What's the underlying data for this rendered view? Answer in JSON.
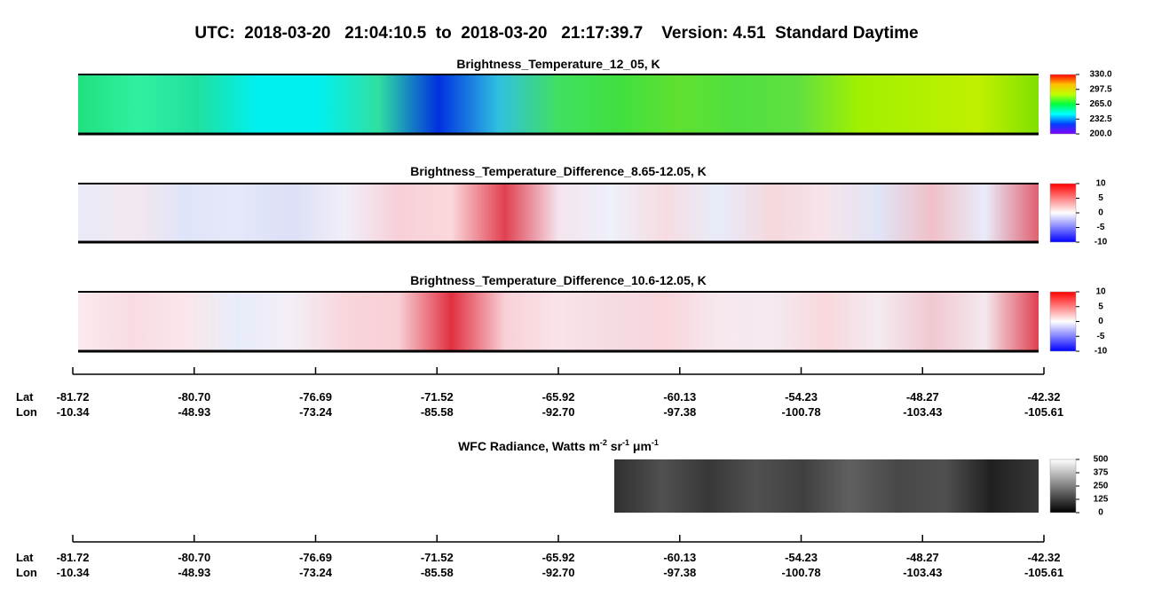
{
  "title": "UTC:  2018-03-20   21:04:10.5  to  2018-03-20   21:17:39.7    Version: 4.51  Standard Daytime",
  "geo_axis": {
    "row_labels": [
      "Lat",
      "Lon"
    ],
    "lat": [
      "-81.72",
      "-80.70",
      "-76.69",
      "-71.52",
      "-65.92",
      "-60.13",
      "-54.23",
      "-48.27",
      "-42.32"
    ],
    "lon": [
      "-10.34",
      "-48.93",
      "-73.24",
      "-85.58",
      "-92.70",
      "-97.38",
      "-100.78",
      "-103.43",
      "-105.61"
    ]
  },
  "chart_data": [
    {
      "type": "heatmap",
      "title": "Brightness_Temperature_12_05, K",
      "colormap": [
        "#8000ff",
        "#0040ff",
        "#00ffff",
        "#00ff40",
        "#c0ff00",
        "#ffc000",
        "#ff0000"
      ],
      "clim": [
        200,
        330
      ],
      "cticks": [
        {
          "value": 330,
          "label": "330.0"
        },
        {
          "value": 297.5,
          "label": "297.5"
        },
        {
          "value": 265,
          "label": "265.0"
        },
        {
          "value": 232.5,
          "label": "232.5"
        },
        {
          "value": 200,
          "label": "200.0"
        }
      ]
    },
    {
      "type": "heatmap",
      "title": "Brightness_Temperature_Difference_8.65-12.05, K",
      "colormap": [
        "#0000ff",
        "#8080ff",
        "#ffffff",
        "#ff8080",
        "#ff0000"
      ],
      "clim": [
        -10,
        10
      ],
      "cticks": [
        10,
        5,
        0,
        -5,
        -10
      ]
    },
    {
      "type": "heatmap",
      "title": "Brightness_Temperature_Difference_10.6-12.05, K",
      "colormap": [
        "#0000ff",
        "#8080ff",
        "#ffffff",
        "#ff8080",
        "#ff0000"
      ],
      "clim": [
        -10,
        10
      ],
      "cticks": [
        10,
        5,
        0,
        -5,
        -10
      ]
    },
    {
      "type": "heatmap",
      "title_parts": [
        "WFC Radiance, Watts m",
        "-2",
        " sr",
        "-1",
        " μm",
        "-1"
      ],
      "colormap": [
        "#000000",
        "#ffffff"
      ],
      "clim": [
        0,
        500
      ],
      "cticks": [
        500,
        375,
        250,
        125,
        0
      ]
    }
  ]
}
